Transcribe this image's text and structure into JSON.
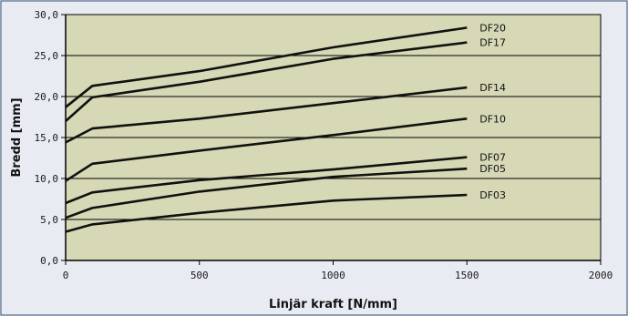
{
  "chart_data": {
    "type": "line",
    "xlabel": "Linjär kraft [N/mm]",
    "ylabel": "Bredd [mm]",
    "xlim": [
      0,
      2000
    ],
    "ylim": [
      0,
      30
    ],
    "x_ticks": [
      "0",
      "500",
      "1000",
      "1500",
      "2000"
    ],
    "y_ticks": [
      "0,0",
      "5,0",
      "10,0",
      "15,0",
      "20,0",
      "25,0",
      "30,0"
    ],
    "grid": "horizontal",
    "series": [
      {
        "name": "DF20",
        "x": [
          0,
          100,
          500,
          1000,
          1500
        ],
        "y": [
          18.7,
          21.3,
          23.1,
          26.0,
          28.4
        ]
      },
      {
        "name": "DF17",
        "x": [
          0,
          100,
          500,
          1000,
          1500
        ],
        "y": [
          17.0,
          19.9,
          21.8,
          24.6,
          26.6
        ]
      },
      {
        "name": "DF14",
        "x": [
          0,
          100,
          500,
          1000,
          1500
        ],
        "y": [
          14.4,
          16.1,
          17.3,
          19.2,
          21.1
        ]
      },
      {
        "name": "DF10",
        "x": [
          0,
          100,
          500,
          1000,
          1500
        ],
        "y": [
          9.7,
          11.8,
          13.4,
          15.3,
          17.3
        ]
      },
      {
        "name": "DF07",
        "x": [
          0,
          100,
          500,
          1000,
          1500
        ],
        "y": [
          7.0,
          8.3,
          9.8,
          11.1,
          12.6
        ]
      },
      {
        "name": "DF05",
        "x": [
          0,
          100,
          500,
          1000,
          1500
        ],
        "y": [
          5.2,
          6.4,
          8.4,
          10.2,
          11.2
        ]
      },
      {
        "name": "DF03",
        "x": [
          0,
          100,
          500,
          1000,
          1500
        ],
        "y": [
          3.5,
          4.4,
          5.8,
          7.3,
          8.0
        ]
      }
    ]
  },
  "colors": {
    "page_bg": "#e8ecf2",
    "plot_bg": "#d7d8b6",
    "axis": "#000000",
    "line": "#111111",
    "tick_text": "#1a1a1a",
    "frame": "#334e6e"
  }
}
